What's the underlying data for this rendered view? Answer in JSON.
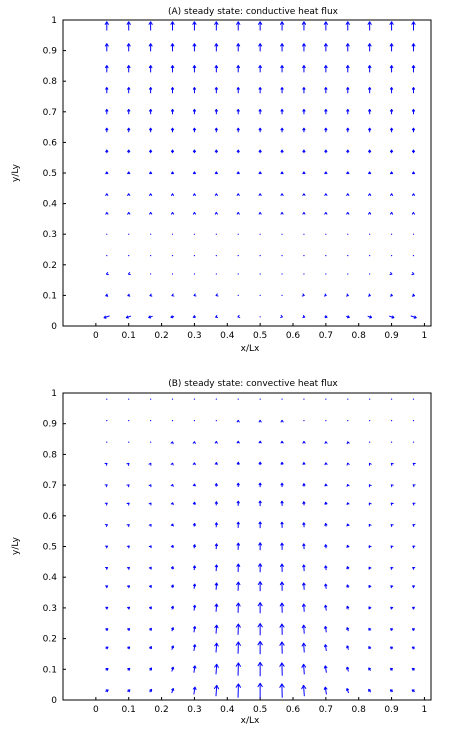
{
  "colors": {
    "vector": "#0000ff",
    "axes": "#000000",
    "background": "#ffffff"
  },
  "chart_data": [
    {
      "id": "A",
      "type": "quiver",
      "title": "(A) steady state: conductive heat flux",
      "xlabel": "x/Lx",
      "ylabel": "y/Ly",
      "xlim": [
        -0.1,
        1.02
      ],
      "ylim": [
        0,
        1.0
      ],
      "xticks": [
        "0",
        "0.1",
        "0.2",
        "0.3",
        "0.4",
        "0.5",
        "0.6",
        "0.7",
        "0.8",
        "0.9",
        "1"
      ],
      "yticks": [
        "0",
        "0.1",
        "0.2",
        "0.3",
        "0.4",
        "0.5",
        "0.6",
        "0.7",
        "0.8",
        "0.9",
        "1"
      ],
      "x": [
        0.0333,
        0.1,
        0.1667,
        0.2333,
        0.3,
        0.3667,
        0.4333,
        0.5,
        0.5667,
        0.6333,
        0.7,
        0.7667,
        0.8333,
        0.9,
        0.9667
      ],
      "y": [
        0.03,
        0.1,
        0.17,
        0.23,
        0.3,
        0.37,
        0.43,
        0.5,
        0.57,
        0.64,
        0.7,
        0.77,
        0.84,
        0.91,
        0.98
      ],
      "field": "v_up_grows_toward_top_u_outward_near_bottom",
      "grid": false,
      "legend": "none"
    },
    {
      "id": "B",
      "type": "quiver",
      "title": "(B) steady state: convective heat flux",
      "xlabel": "x/Lx",
      "ylabel": "y/Ly",
      "xlim": [
        -0.1,
        1.02
      ],
      "ylim": [
        0,
        1.0
      ],
      "xticks": [
        "0",
        "0.1",
        "0.2",
        "0.3",
        "0.4",
        "0.5",
        "0.6",
        "0.7",
        "0.8",
        "0.9",
        "1"
      ],
      "yticks": [
        "0",
        "0.1",
        "0.2",
        "0.3",
        "0.4",
        "0.5",
        "0.6",
        "0.7",
        "0.8",
        "0.9",
        "1"
      ],
      "x": [
        0.0333,
        0.1,
        0.1667,
        0.2333,
        0.3,
        0.3667,
        0.4333,
        0.5,
        0.5667,
        0.6333,
        0.7,
        0.7667,
        0.8333,
        0.9,
        0.9667
      ],
      "y": [
        0.03,
        0.1,
        0.17,
        0.23,
        0.3,
        0.37,
        0.43,
        0.5,
        0.57,
        0.64,
        0.7,
        0.77,
        0.84,
        0.91,
        0.98
      ],
      "field": "v_up_peaks_at_center_bottom_converging_toward_center",
      "grid": false,
      "legend": "none"
    }
  ]
}
